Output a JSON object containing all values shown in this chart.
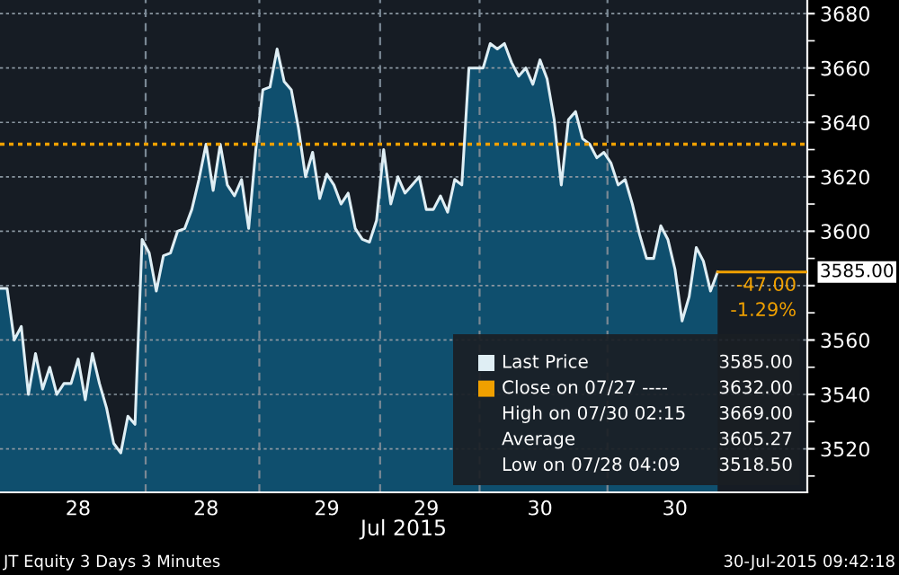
{
  "chart_data": {
    "type": "area",
    "xlabel": "Jul 2015",
    "categories": [
      null,
      null,
      null,
      null,
      null,
      null,
      null,
      null,
      null,
      null,
      null,
      "28",
      null,
      null,
      null,
      null,
      null,
      null,
      null,
      null,
      null,
      null,
      null,
      null,
      null,
      null,
      null,
      null,
      null,
      "28",
      null,
      null,
      null,
      null,
      null,
      null,
      null,
      null,
      null,
      null,
      null,
      null,
      null,
      null,
      null,
      null,
      "29",
      null,
      null,
      null,
      null,
      null,
      null,
      null,
      null,
      null,
      null,
      null,
      null,
      null,
      "29",
      null,
      null,
      null,
      null,
      null,
      null,
      null,
      null,
      null,
      null,
      null,
      null,
      null,
      null,
      null,
      "30",
      null,
      null,
      null,
      null,
      null,
      null,
      null,
      null,
      null,
      null,
      null,
      null,
      null,
      null,
      null,
      null,
      null,
      null,
      "30",
      null,
      null,
      null,
      null,
      null,
      null
    ],
    "ylim": [
      3504,
      3685
    ],
    "yticks": [
      3520,
      3540,
      3560,
      {
        "value": 3580,
        "label": null
      },
      3600,
      3620,
      3640,
      3660,
      3680
    ],
    "grid": "y",
    "legend": "bottom right",
    "series": [
      {
        "name": "Last Price",
        "color": "#dfeef4",
        "values": [
          3579,
          3579,
          3560,
          3565,
          3540,
          3555,
          3542,
          3550,
          3540,
          3544,
          3544,
          3553,
          3538,
          3555,
          3544,
          3535,
          3522,
          3518.5,
          3532,
          3529,
          3597,
          3592,
          3578,
          3591,
          3592,
          3600,
          3601,
          3608,
          3619,
          3632,
          3615,
          3632,
          3617,
          3613,
          3619,
          3601,
          3630,
          3652,
          3653,
          3667,
          3655,
          3652,
          3638,
          3620,
          3629,
          3612,
          3621,
          3617,
          3610,
          3614,
          3601,
          3597,
          3596,
          3604,
          3630,
          3610,
          3620,
          3614,
          3617,
          3620,
          3608,
          3608,
          3613,
          3607,
          3619,
          3617,
          3660,
          3660,
          3660,
          3669,
          3667,
          3669,
          3662,
          3657,
          3660,
          3654,
          3663,
          3656,
          3641,
          3617,
          3641,
          3644,
          3634,
          3632,
          3627,
          3629,
          3625,
          3617,
          3619,
          3610,
          3599,
          3590,
          3590,
          3602,
          3597,
          3586,
          3567,
          3576,
          3594,
          3589,
          3578,
          3585
        ]
      }
    ],
    "ref_lines": [
      {
        "axis": "y",
        "value": 3632,
        "label": "Close on 07/27 ----",
        "color": "#f0a000",
        "line_style": "dotted"
      }
    ],
    "annotations": [
      "3585.00",
      "3632.00",
      "High on 07/30 02:15",
      "3669.00",
      "Average",
      "3605.27",
      "Low on 07/28 04:09",
      "3518.50",
      "3585.00",
      "-47.00",
      "-1.29%",
      "JT Equity 3 Days 3 Minutes",
      "30-Jul-2015 09:42:18"
    ]
  }
}
